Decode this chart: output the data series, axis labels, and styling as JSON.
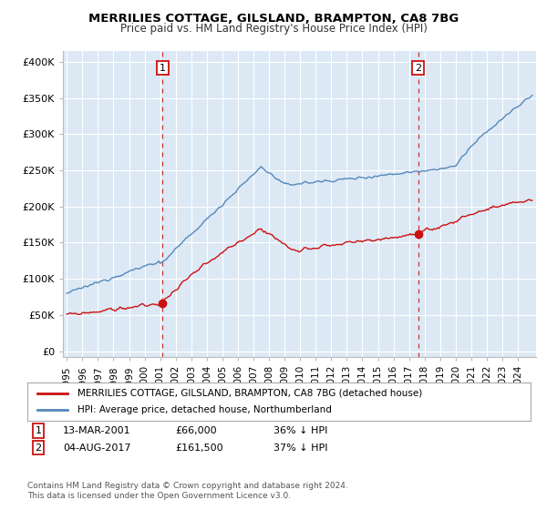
{
  "title": "MERRILIES COTTAGE, GILSLAND, BRAMPTON, CA8 7BG",
  "subtitle": "Price paid vs. HM Land Registry's House Price Index (HPI)",
  "bg_color": "#ffffff",
  "plot_bg_color": "#dce9f5",
  "grid_color": "#ffffff",
  "hpi_color": "#5588bb",
  "price_color": "#cc1111",
  "vline_color": "#cc1111",
  "legend_label1": "MERRILIES COTTAGE, GILSLAND, BRAMPTON, CA8 7BG (detached house)",
  "legend_label2": "HPI: Average price, detached house, Northumberland",
  "footer": "Contains HM Land Registry data © Crown copyright and database right 2024.\nThis data is licensed under the Open Government Licence v3.0.",
  "yticks": [
    0,
    50000,
    100000,
    150000,
    200000,
    250000,
    300000,
    350000,
    400000
  ],
  "ytick_labels": [
    "£0",
    "£50K",
    "£100K",
    "£150K",
    "£200K",
    "£250K",
    "£300K",
    "£350K",
    "£400K"
  ],
  "ylim": [
    -8000,
    415000
  ]
}
